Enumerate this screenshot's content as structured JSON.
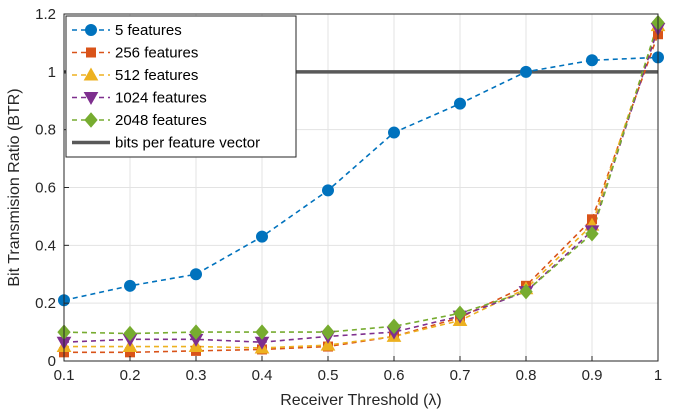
{
  "chart_data": {
    "type": "line",
    "xlabel": "Receiver Threshold (λ)",
    "ylabel": "Bit Transmision Ratio (BTR)",
    "xlim": [
      0.1,
      1
    ],
    "ylim": [
      0,
      1.2
    ],
    "x": [
      0.1,
      0.2,
      0.3,
      0.4,
      0.5,
      0.6,
      0.7,
      0.8,
      0.9,
      1
    ],
    "xticks": [
      "0.1",
      "0.2",
      "0.3",
      "0.4",
      "0.5",
      "0.6",
      "0.7",
      "0.8",
      "0.9",
      "1"
    ],
    "yticks": [
      "0",
      "0.2",
      "0.4",
      "0.6",
      "0.8",
      "1",
      "1.2"
    ],
    "ytick_values": [
      0,
      0.2,
      0.4,
      0.6,
      0.8,
      1,
      1.2
    ],
    "grid": true,
    "legend_position": "top-left",
    "series": [
      {
        "name": "5 features",
        "color": "#0072BD",
        "marker": "circle",
        "style": "dashed",
        "values": [
          0.21,
          0.26,
          0.3,
          0.43,
          0.59,
          0.79,
          0.89,
          1.0,
          1.04,
          1.05
        ]
      },
      {
        "name": "256 features",
        "color": "#D95319",
        "marker": "square",
        "style": "dashed",
        "values": [
          0.03,
          0.03,
          0.035,
          0.04,
          0.05,
          0.085,
          0.15,
          0.26,
          0.49,
          1.13
        ]
      },
      {
        "name": "512 features",
        "color": "#EDB120",
        "marker": "triangle-up",
        "style": "dashed",
        "values": [
          0.05,
          0.05,
          0.05,
          0.045,
          0.055,
          0.085,
          0.14,
          0.25,
          0.47,
          1.16
        ]
      },
      {
        "name": "1024 features",
        "color": "#7E2F8E",
        "marker": "triangle-down",
        "style": "dashed",
        "values": [
          0.065,
          0.075,
          0.075,
          0.065,
          0.085,
          0.1,
          0.155,
          0.24,
          0.45,
          1.15
        ]
      },
      {
        "name": "2048 features",
        "color": "#77AC30",
        "marker": "diamond",
        "style": "dashed",
        "values": [
          0.1,
          0.095,
          0.1,
          0.1,
          0.1,
          0.12,
          0.165,
          0.24,
          0.44,
          1.17
        ]
      }
    ],
    "reference_lines": [
      {
        "name": "bits per feature vector",
        "color": "#595959",
        "y": 1
      }
    ]
  }
}
